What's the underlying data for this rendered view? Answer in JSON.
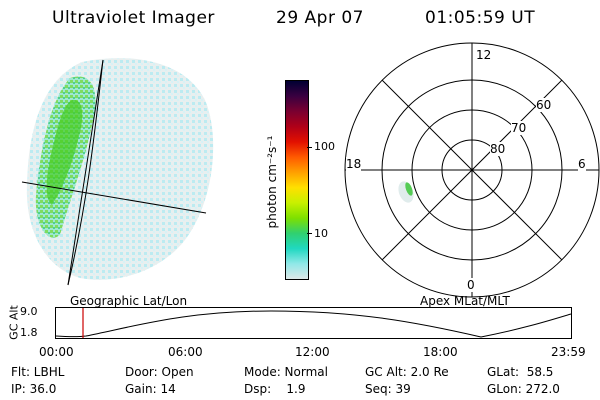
{
  "header": {
    "instrument": "Ultraviolet Imager",
    "date": "29 Apr 07",
    "time": "01:05:59 UT"
  },
  "left_panel": {
    "caption": "Geographic Lat/Lon"
  },
  "right_panel": {
    "caption": "Apex MLat/MLT",
    "mlt_labels": {
      "top": "12",
      "left": "18",
      "right": "6",
      "bottom": "0"
    },
    "lat_labels": [
      "60",
      "70",
      "80"
    ]
  },
  "colorbar": {
    "unit": "photon cm⁻²s⁻¹",
    "ticks": [
      "100",
      "10"
    ],
    "colors": [
      "#000033",
      "#3a0040",
      "#7a0030",
      "#b00018",
      "#e21000",
      "#ff5a00",
      "#ffa000",
      "#ffe000",
      "#c8f000",
      "#7ee000",
      "#30d070",
      "#20d8c0",
      "#90e8e8",
      "#dde8e8"
    ]
  },
  "altitude_strip": {
    "ylabel": "GC Alt",
    "yticks": [
      "9.0",
      "1.8"
    ],
    "xticks": [
      "00:00",
      "06:00",
      "12:00",
      "18:00",
      "23:59"
    ],
    "marker_color": "#cc0000"
  },
  "info": {
    "flt": "Flt: LBHL",
    "door": "Door: Open",
    "mode": "Mode: Normal",
    "gc_alt": "GC Alt: 2.0 Re",
    "glat": "GLat:  58.5",
    "ip": "IP: 36.0",
    "gain": "Gain: 14",
    "dsp": "Dsp:    1.9",
    "seq": "Seq: 39",
    "glon": "GLon: 272.0"
  }
}
